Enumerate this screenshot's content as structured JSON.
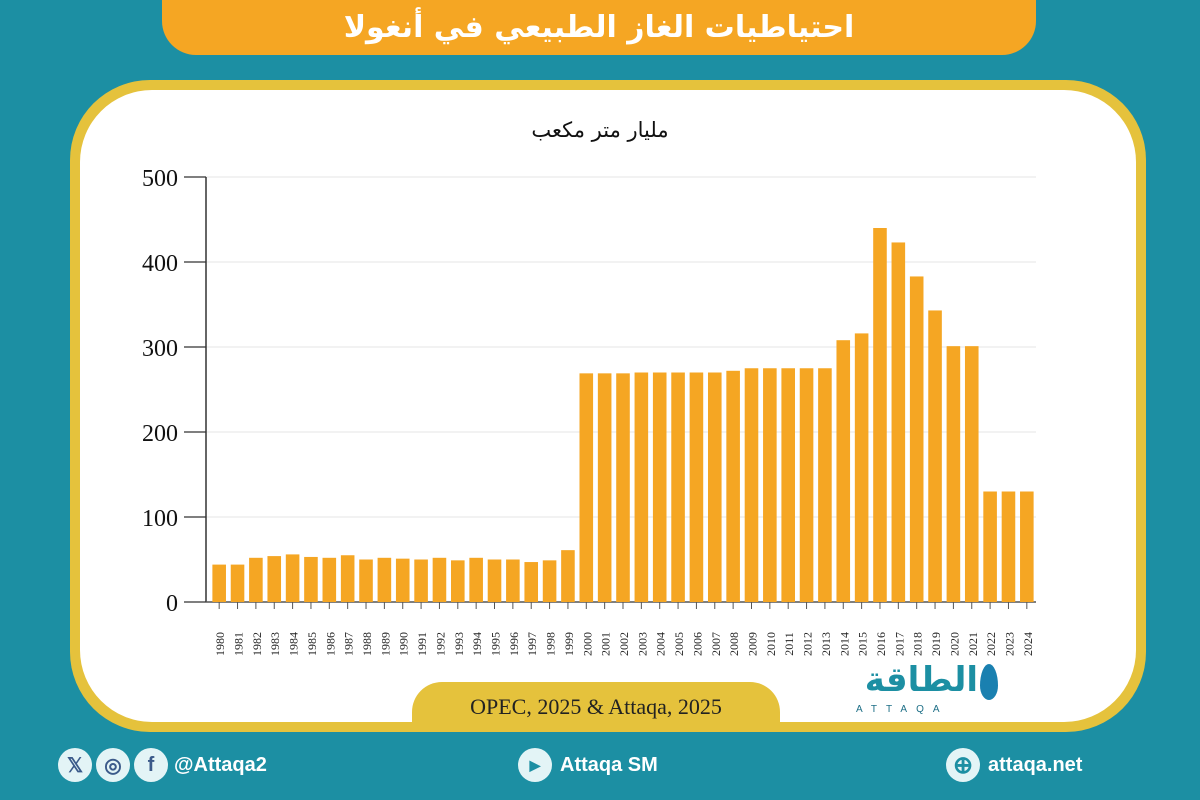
{
  "header": {
    "title": "احتياطيات الغاز الطبيعي في أنغولا"
  },
  "chart_data": {
    "type": "bar",
    "title": "احتياطيات الغاز الطبيعي في أنغولا",
    "ylabel": "مليار متر مكعب",
    "xlabel": "",
    "ylim": [
      0,
      500
    ],
    "yticks": [
      0,
      100,
      200,
      300,
      400,
      500
    ],
    "grid": true,
    "bar_color": "#f5a623",
    "categories": [
      "1980",
      "1981",
      "1982",
      "1983",
      "1984",
      "1985",
      "1986",
      "1987",
      "1988",
      "1989",
      "1990",
      "1991",
      "1992",
      "1993",
      "1994",
      "1995",
      "1996",
      "1997",
      "1998",
      "1999",
      "2000",
      "2001",
      "2002",
      "2003",
      "2004",
      "2005",
      "2006",
      "2007",
      "2008",
      "2009",
      "2010",
      "2011",
      "2012",
      "2013",
      "2014",
      "2015",
      "2016",
      "2017",
      "2018",
      "2019",
      "2020",
      "2021",
      "2022",
      "2023",
      "2024"
    ],
    "values": [
      44,
      44,
      52,
      54,
      56,
      53,
      52,
      55,
      50,
      52,
      51,
      50,
      52,
      49,
      52,
      50,
      50,
      47,
      49,
      61,
      269,
      269,
      269,
      270,
      270,
      270,
      270,
      270,
      272,
      275,
      275,
      275,
      275,
      275,
      308,
      316,
      440,
      423,
      383,
      343,
      301,
      301,
      130,
      130,
      130
    ]
  },
  "source": {
    "text": "OPEC, 2025 & Attaqa, 2025"
  },
  "logo": {
    "arabic": "الطاقة",
    "english": "ATTAQA"
  },
  "footer": {
    "social_handle": "@Attaqa2",
    "youtube": "Attaqa SM",
    "website": "attaqa.net",
    "icons": {
      "x": "𝕏",
      "instagram": "◎",
      "facebook": "f",
      "youtube": "▶",
      "globe": "⊕"
    }
  }
}
